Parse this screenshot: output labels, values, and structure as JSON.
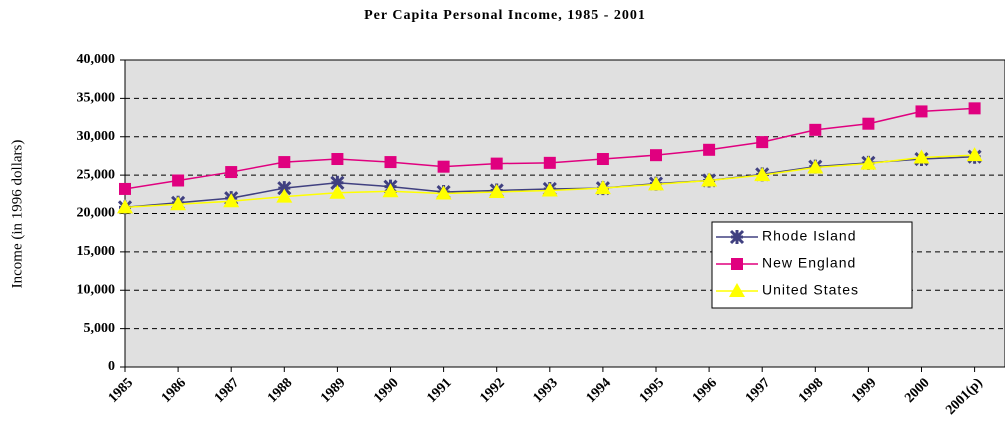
{
  "chart_data": {
    "type": "line",
    "title": "Per Capita Personal Income, 1985 - 2001",
    "y_label": "Income (in 1996 dollars)",
    "categories": [
      "1985",
      "1986",
      "1987",
      "1988",
      "1989",
      "1990",
      "1991",
      "1992",
      "1993",
      "1994",
      "1995",
      "1996",
      "1997",
      "1998",
      "1999",
      "2000",
      "2001(p)"
    ],
    "series": [
      {
        "name": "Rhode Island",
        "color": "#404080",
        "marker": "star",
        "values": [
          20800,
          21400,
          22000,
          23300,
          24000,
          23500,
          22800,
          23000,
          23200,
          23300,
          23900,
          24300,
          25100,
          26100,
          26600,
          27100,
          27400
        ]
      },
      {
        "name": "New England",
        "color": "#e0007f",
        "marker": "square",
        "values": [
          23200,
          24300,
          25400,
          26700,
          27100,
          26700,
          26100,
          26500,
          26600,
          27100,
          27600,
          28300,
          29300,
          30900,
          31700,
          33300,
          33700
        ]
      },
      {
        "name": "United States",
        "color": "#ffff00",
        "marker": "triangle",
        "values": [
          20800,
          21200,
          21600,
          22200,
          22700,
          22900,
          22600,
          22800,
          23000,
          23300,
          23800,
          24300,
          25000,
          26000,
          26500,
          27300,
          27600
        ]
      }
    ],
    "ylim": [
      0,
      40000
    ],
    "yticks": [
      0,
      {
        "value": 5000,
        "label": "5,000"
      },
      {
        "value": 10000,
        "label": "10,000"
      },
      {
        "value": 15000,
        "label": "15,000"
      },
      {
        "value": 20000,
        "label": "20,000"
      },
      {
        "value": 25000,
        "label": "25,000"
      },
      {
        "value": 30000,
        "label": "30,000"
      },
      {
        "value": 35000,
        "label": "35,000"
      },
      {
        "value": 40000,
        "label": "40,000"
      }
    ],
    "grid": true,
    "legend": "right"
  }
}
